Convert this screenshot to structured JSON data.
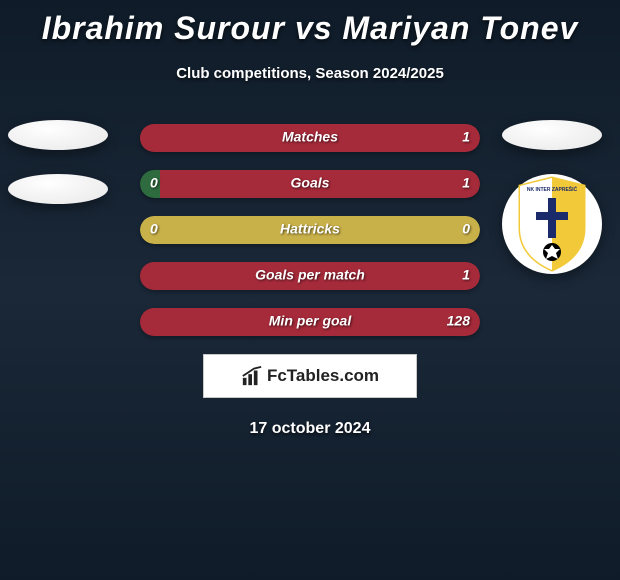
{
  "title": "Ibrahim Surour vs Mariyan Tonev",
  "subtitle": "Club competitions, Season 2024/2025",
  "date": "17 october 2024",
  "logo_text": "FcTables.com",
  "colors": {
    "bar_left": "#2e6b3e",
    "bar_right": "#a52a3a",
    "bar_full": "#a52a3a",
    "bar_half": "#c9b14a",
    "background_top": "#0f1b28"
  },
  "rows": [
    {
      "label": "Matches",
      "left": "",
      "right": "1",
      "left_width_pct": 0,
      "right_width_pct": 100,
      "left_color": "#a52a3a",
      "right_color": "#a52a3a"
    },
    {
      "label": "Goals",
      "left": "0",
      "right": "1",
      "left_width_pct": 6,
      "right_width_pct": 94,
      "left_color": "#2e6b3e",
      "right_color": "#a52a3a"
    },
    {
      "label": "Hattricks",
      "left": "0",
      "right": "0",
      "left_width_pct": 50,
      "right_width_pct": 50,
      "left_color": "#c9b14a",
      "right_color": "#c9b14a"
    },
    {
      "label": "Goals per match",
      "left": "",
      "right": "1",
      "left_width_pct": 0,
      "right_width_pct": 100,
      "left_color": "#a52a3a",
      "right_color": "#a52a3a"
    },
    {
      "label": "Min per goal",
      "left": "",
      "right": "128",
      "left_width_pct": 0,
      "right_width_pct": 100,
      "left_color": "#a52a3a",
      "right_color": "#a52a3a"
    }
  ],
  "badge": {
    "shield_blue": "#1a2a6b",
    "shield_yellow": "#f2c938",
    "shield_white": "#ffffff",
    "shield_black": "#000000"
  }
}
